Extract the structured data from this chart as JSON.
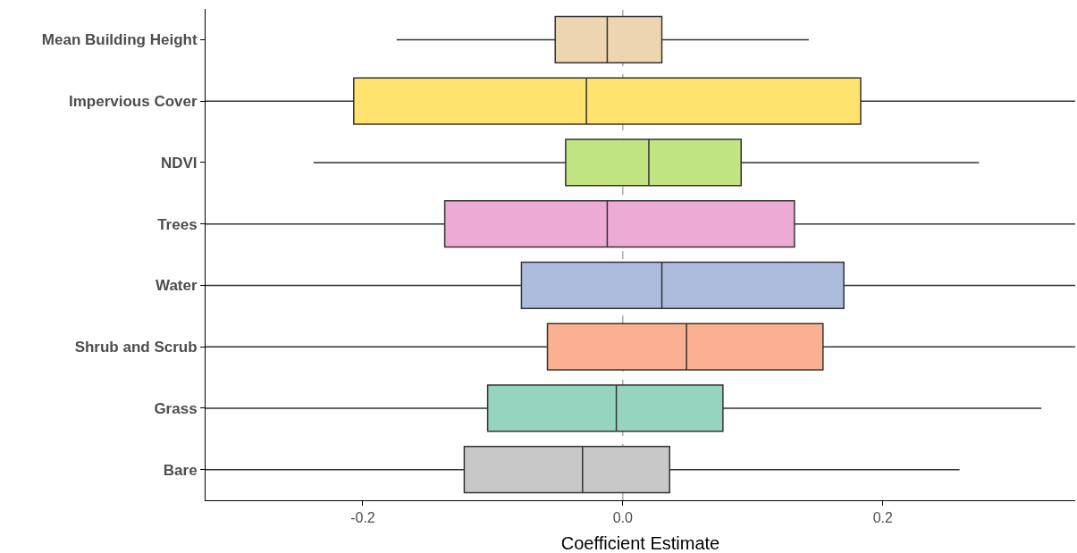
{
  "chart_data": {
    "type": "box",
    "orientation": "horizontal",
    "xlabel": "Coefficient Estimate",
    "categories": [
      "Mean Building Height",
      "Impervious Cover",
      "NDVI",
      "Trees",
      "Water",
      "Shrub and Scrub",
      "Grass",
      "Bare"
    ],
    "colors": [
      "#edd5b0",
      "#ffe36e",
      "#c2e584",
      "#edaad4",
      "#adbbdc",
      "#fbb092",
      "#96d4bf",
      "#c8c8c8"
    ],
    "boxes": [
      {
        "low": -0.174,
        "q1": -0.052,
        "median": -0.012,
        "q3": 0.03,
        "high": 0.143
      },
      {
        "low": -0.321,
        "q1": -0.207,
        "median": -0.028,
        "q3": 0.183,
        "high": 0.348
      },
      {
        "low": -0.238,
        "q1": -0.044,
        "median": 0.02,
        "q3": 0.091,
        "high": 0.274
      },
      {
        "low": -0.321,
        "q1": -0.137,
        "median": -0.012,
        "q3": 0.132,
        "high": 0.348
      },
      {
        "low": -0.321,
        "q1": -0.078,
        "median": 0.03,
        "q3": 0.17,
        "high": 0.348
      },
      {
        "low": -0.321,
        "q1": -0.058,
        "median": 0.049,
        "q3": 0.154,
        "high": 0.348
      },
      {
        "low": -0.321,
        "q1": -0.104,
        "median": -0.005,
        "q3": 0.077,
        "high": 0.322
      },
      {
        "low": -0.321,
        "q1": -0.122,
        "median": -0.031,
        "q3": 0.036,
        "high": 0.259
      }
    ],
    "xlim": [
      -0.321,
      0.348
    ],
    "xticks": [
      {
        "value": -0.2,
        "label": "-0.2"
      },
      {
        "value": 0,
        "label": "0.0"
      },
      {
        "value": 0.2,
        "label": "0.2"
      }
    ],
    "ref_lines": [
      {
        "axis": "x",
        "value": 0,
        "color": "#999999",
        "line_style": "dashed"
      }
    ],
    "grid": false
  }
}
